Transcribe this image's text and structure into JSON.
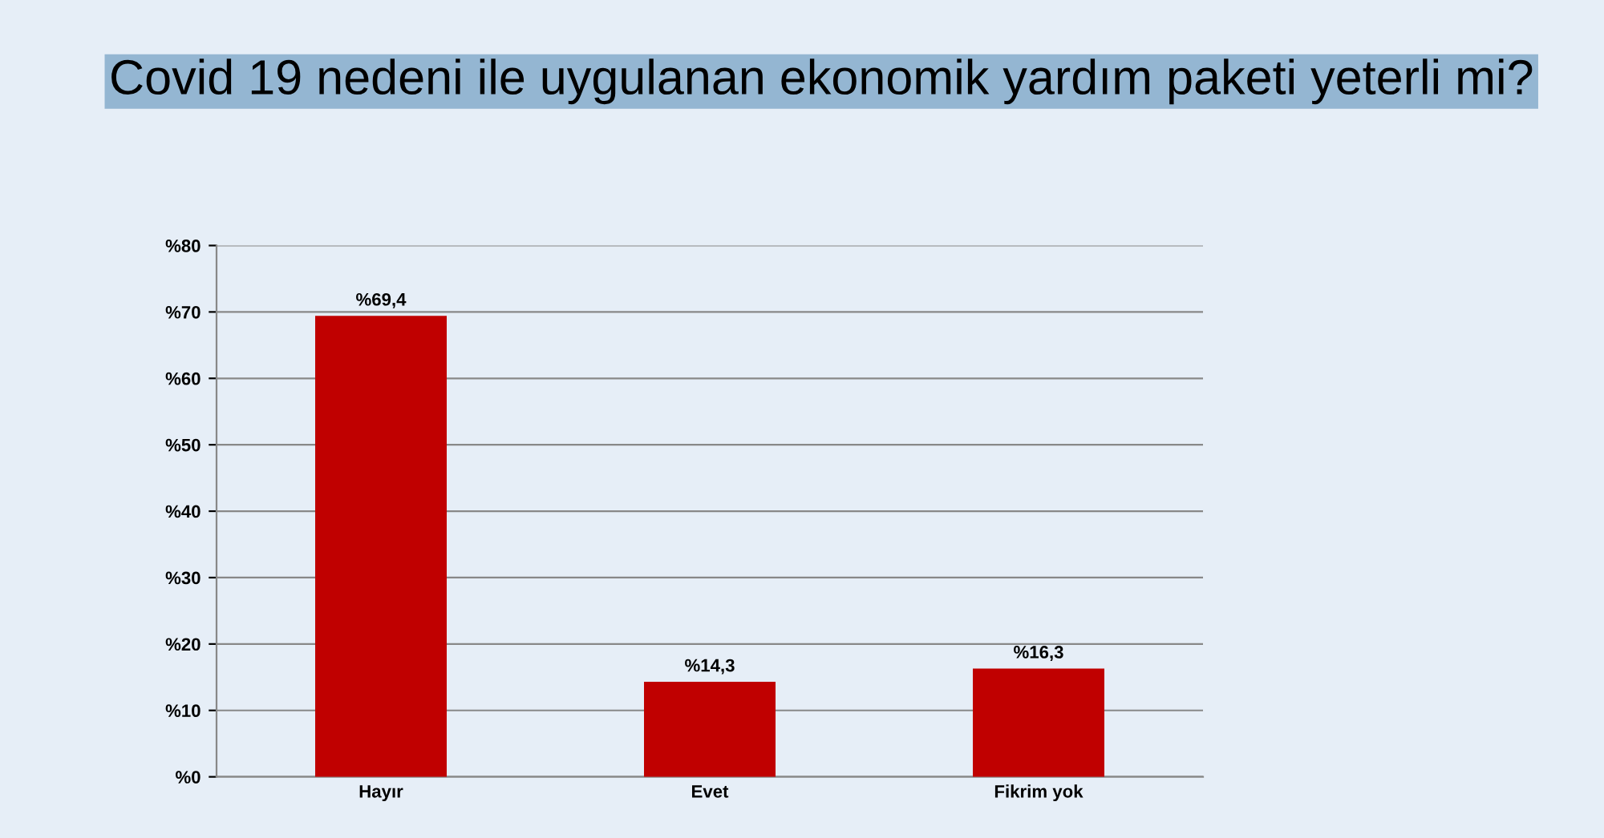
{
  "chart_data": {
    "type": "bar",
    "title": "Covid 19 nedeni ile uygulanan ekonomik yardım paketi yeterli mi?",
    "categories": [
      "Hayır",
      "Evet",
      "Fikrim yok"
    ],
    "values": [
      69.4,
      14.3,
      16.3
    ],
    "value_labels": [
      "%69,4",
      "%14,3",
      "%16,3"
    ],
    "color": "#c00000",
    "ylim": [
      0,
      80
    ],
    "yticks": [
      {
        "value": 0,
        "label": "%0"
      },
      {
        "value": 10,
        "label": "%10"
      },
      {
        "value": 20,
        "label": "%20"
      },
      {
        "value": 30,
        "label": "%30"
      },
      {
        "value": 40,
        "label": "%40"
      },
      {
        "value": 50,
        "label": "%50"
      },
      {
        "value": 60,
        "label": "%60"
      },
      {
        "value": 70,
        "label": "%70"
      },
      {
        "value": 80,
        "label": "%80"
      }
    ],
    "grid": "y",
    "legend": false
  }
}
